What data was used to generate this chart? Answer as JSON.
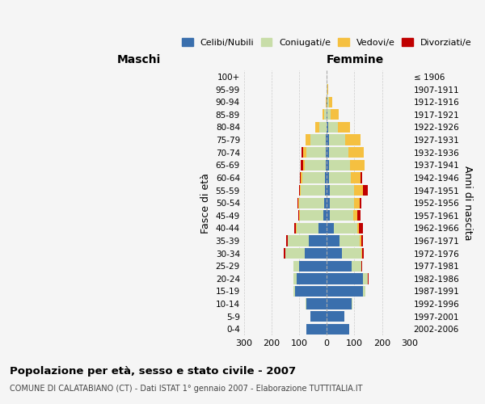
{
  "age_groups": [
    "0-4",
    "5-9",
    "10-14",
    "15-19",
    "20-24",
    "25-29",
    "30-34",
    "35-39",
    "40-44",
    "45-49",
    "50-54",
    "55-59",
    "60-64",
    "65-69",
    "70-74",
    "75-79",
    "80-84",
    "85-89",
    "90-94",
    "95-99",
    "100+"
  ],
  "birth_years": [
    "2002-2006",
    "1997-2001",
    "1992-1996",
    "1987-1991",
    "1982-1986",
    "1977-1981",
    "1972-1976",
    "1967-1971",
    "1962-1966",
    "1957-1961",
    "1952-1956",
    "1947-1951",
    "1942-1946",
    "1937-1941",
    "1932-1936",
    "1927-1931",
    "1922-1926",
    "1917-1921",
    "1912-1916",
    "1907-1911",
    "≤ 1906"
  ],
  "male_celibi": [
    75,
    60,
    75,
    115,
    110,
    100,
    80,
    65,
    30,
    12,
    10,
    8,
    8,
    5,
    5,
    3,
    2,
    2,
    0,
    0,
    0
  ],
  "male_coniugati": [
    0,
    0,
    2,
    5,
    10,
    20,
    70,
    75,
    80,
    85,
    90,
    85,
    80,
    75,
    70,
    55,
    25,
    8,
    2,
    0,
    0
  ],
  "male_vedovi": [
    0,
    0,
    0,
    0,
    0,
    0,
    0,
    2,
    2,
    2,
    2,
    3,
    5,
    5,
    12,
    18,
    15,
    5,
    2,
    0,
    0
  ],
  "male_divorziati": [
    0,
    0,
    0,
    0,
    0,
    2,
    5,
    5,
    5,
    5,
    5,
    5,
    5,
    8,
    3,
    0,
    0,
    0,
    0,
    0,
    0
  ],
  "female_celibi": [
    80,
    65,
    90,
    130,
    130,
    90,
    55,
    45,
    25,
    12,
    10,
    10,
    8,
    8,
    8,
    8,
    5,
    2,
    2,
    0,
    0
  ],
  "female_coniugati": [
    0,
    0,
    3,
    10,
    20,
    35,
    70,
    75,
    85,
    85,
    90,
    90,
    80,
    75,
    70,
    60,
    35,
    12,
    5,
    3,
    0
  ],
  "female_vedovi": [
    0,
    0,
    0,
    0,
    0,
    0,
    3,
    5,
    5,
    15,
    20,
    30,
    35,
    55,
    55,
    55,
    45,
    30,
    12,
    2,
    0
  ],
  "female_divorziati": [
    0,
    0,
    0,
    0,
    2,
    2,
    5,
    5,
    15,
    10,
    5,
    20,
    5,
    0,
    0,
    0,
    0,
    0,
    0,
    0,
    0
  ],
  "colors": {
    "celibi": "#3a6fad",
    "coniugati": "#c8dda8",
    "vedovi": "#f5c040",
    "divorziati": "#c00000"
  },
  "xlim": 300,
  "title": "Popolazione per età, sesso e stato civile - 2007",
  "subtitle": "COMUNE DI CALATABIANO (CT) - Dati ISTAT 1° gennaio 2007 - Elaborazione TUTTITALIA.IT",
  "ylabel_left": "Fasce di età",
  "ylabel_right": "Anni di nascita",
  "xlabel_left": "Maschi",
  "xlabel_right": "Femmine",
  "background_color": "#f5f5f5",
  "grid_color": "#cccccc"
}
